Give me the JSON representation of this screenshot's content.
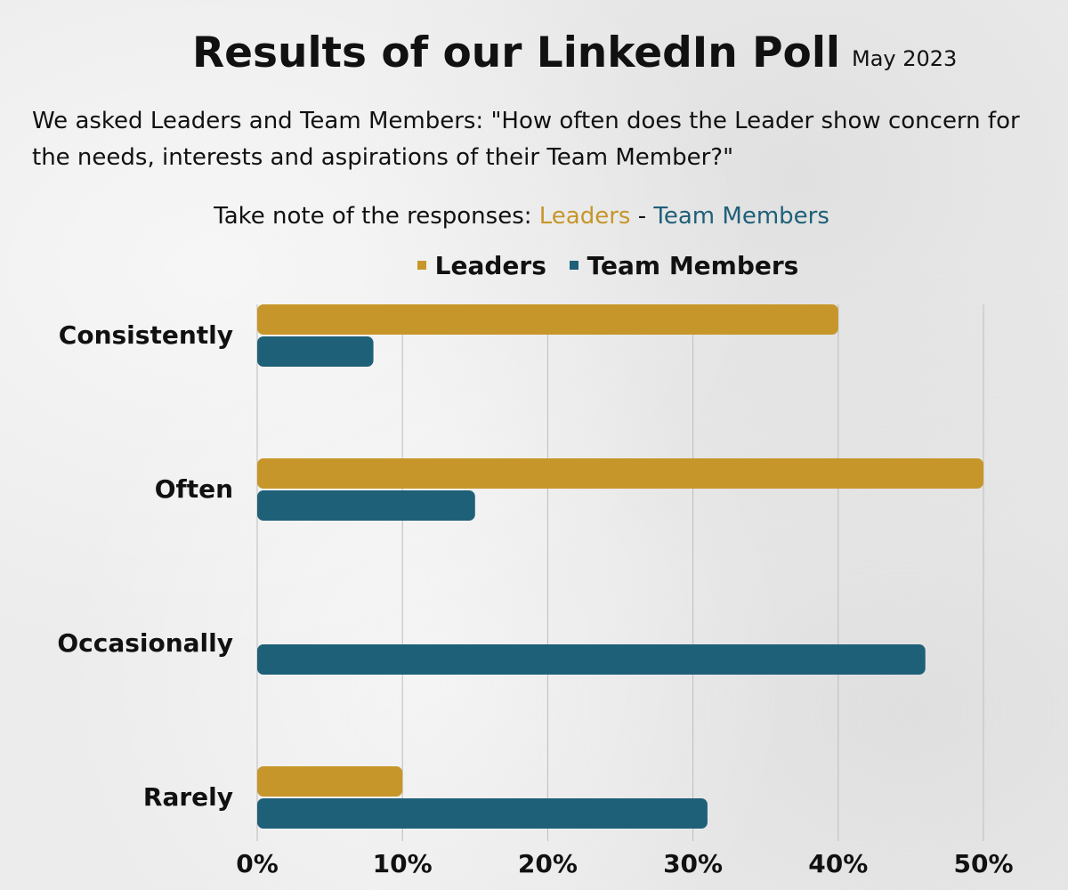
{
  "header": {
    "title": "Results of our LinkedIn Poll",
    "date": "May 2023",
    "question": "We asked Leaders and Team Members: \"How often does the Leader show concern for the needs, interests and aspirations of their Team Member?\"",
    "note_prefix": "Take note of the responses: ",
    "note_leaders": "Leaders",
    "note_separator": " - ",
    "note_team": "Team Members"
  },
  "colors": {
    "leaders": "#C7962A",
    "team_members": "#1F6079",
    "grid": "#bdbdbd"
  },
  "chart_data": {
    "type": "bar",
    "orientation": "horizontal",
    "categories": [
      "Consistently",
      "Often",
      "Occasionally",
      "Rarely"
    ],
    "series": [
      {
        "name": "Leaders",
        "values": [
          40,
          50,
          0,
          10
        ]
      },
      {
        "name": "Team Members",
        "values": [
          8,
          15,
          46,
          31
        ]
      }
    ],
    "xlim": [
      0,
      50
    ],
    "xticks": [
      "0%",
      "10%",
      "20%",
      "30%",
      "40%",
      "50%"
    ],
    "xlabel": "",
    "ylabel": "",
    "grid": true,
    "legend": "top"
  }
}
